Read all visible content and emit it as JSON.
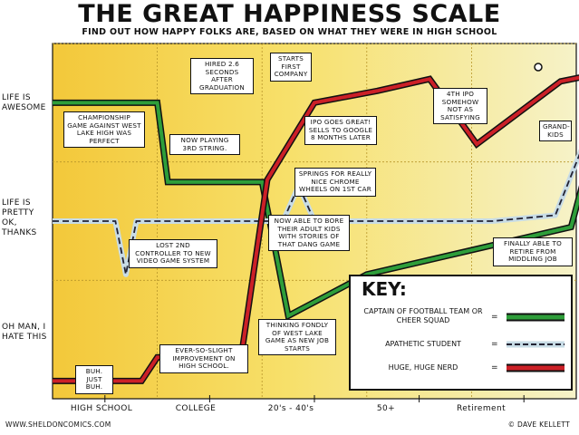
{
  "chart_data": {
    "type": "line",
    "title": "THE GREAT HAPPINESS SCALE",
    "subtitle": "FIND OUT HOW HAPPY FOLKS ARE, BASED ON WHAT THEY WERE IN HIGH SCHOOL",
    "y_levels": [
      {
        "label": "LIFE IS AWESOME",
        "value": 3
      },
      {
        "label": "LIFE IS PRETTY OK, THANKS",
        "value": 2
      },
      {
        "label": "OH MAN, I HATE THIS",
        "value": 1
      }
    ],
    "ylim": [
      0.5,
      3.5
    ],
    "x_categories": [
      "HIGH SCHOOL",
      "COLLEGE",
      "20's - 40's",
      "50+",
      "Retirement"
    ],
    "xlim": [
      0,
      5
    ],
    "series": [
      {
        "name": "CAPTAIN OF FOOTBALL TEAM OR CHEER SQUAD",
        "color": "#2e9e3a",
        "points": [
          [
            0,
            3.0
          ],
          [
            1.0,
            3.0
          ],
          [
            1.1,
            2.33
          ],
          [
            2.0,
            2.33
          ],
          [
            2.25,
            1.2
          ],
          [
            3.0,
            1.55
          ],
          [
            4.95,
            1.95
          ],
          [
            5.35,
            3.27
          ]
        ]
      },
      {
        "name": "APATHETIC STUDENT",
        "color": "#c8dce6",
        "points": [
          [
            0,
            2.0
          ],
          [
            0.6,
            2.0
          ],
          [
            0.7,
            1.55
          ],
          [
            0.8,
            2.0
          ],
          [
            2.2,
            2.0
          ],
          [
            2.35,
            2.3
          ],
          [
            2.5,
            2.0
          ],
          [
            4.2,
            2.0
          ],
          [
            4.8,
            2.05
          ],
          [
            5.35,
            3.27
          ]
        ]
      },
      {
        "name": "HUGE, HUGE NERD",
        "color": "#cc2027",
        "points": [
          [
            0,
            0.65
          ],
          [
            0.85,
            0.65
          ],
          [
            1.0,
            0.85
          ],
          [
            1.8,
            0.85
          ],
          [
            2.05,
            2.35
          ],
          [
            2.5,
            3.0
          ],
          [
            3.1,
            3.1
          ],
          [
            3.6,
            3.2
          ],
          [
            4.05,
            2.65
          ],
          [
            4.85,
            3.18
          ],
          [
            5.35,
            3.27
          ]
        ]
      }
    ]
  },
  "annotations": {
    "championship": "CHAMPIONSHIP GAME AGAINST WEST LAKE HIGH WAS PERFECT",
    "string": "NOW PLAYING 3RD STRING.",
    "hired": "HIRED 2.6 SECONDS AFTER GRADUATION",
    "company": "STARTS FIRST COMPANY",
    "ipo": "IPO GOES GREAT! SELLS TO GOOGLE 8 MONTHS LATER",
    "ipo4": "4TH IPO SOMEHOW NOT AS SATISFYING",
    "grandkids": "GRAND-KIDS",
    "springs": "SPRINGS FOR REALLY NICE CHROME WHEELS ON 1ST CAR",
    "controller": "LOST 2ND CONTROLLER TO NEW VIDEO GAME SYSTEM",
    "bore": "NOW ABLE TO BORE THEIR ADULT KIDS WITH STORIES OF THAT DANG GAME",
    "retire": "FINALLY ABLE TO RETIRE FROM MIDDLING JOB",
    "thinking": "THINKING FONDLY OF WEST LAKE GAME AS NEW JOB STARTS",
    "improvement": "EVER-SO-SLIGHT IMPROVEMENT ON HIGH SCHOOL.",
    "buh": "BUH. JUST BUH."
  },
  "key": {
    "title": "KEY:",
    "equals": "="
  },
  "footer": {
    "left": "WWW.SHELDONCOMICS.COM",
    "right": "© DAVE KELLETT"
  }
}
